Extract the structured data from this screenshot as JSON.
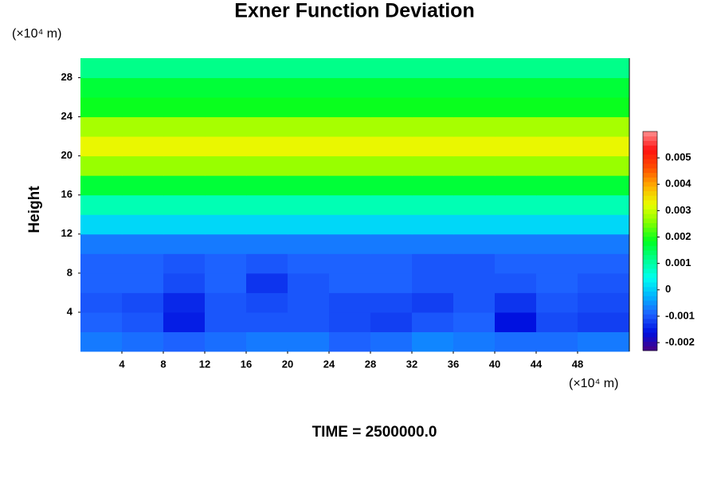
{
  "chart_data": {
    "type": "contour",
    "title": "Exner Function Deviation",
    "y_unit": "(×10⁴ m)",
    "x_unit": "(×10⁴ m)",
    "ylabel": "Height",
    "footer": "TIME = 2500000.0",
    "xlim": [
      0,
      53
    ],
    "ylim": [
      0,
      30
    ],
    "xticks": [
      4,
      8,
      12,
      16,
      20,
      24,
      28,
      32,
      36,
      40,
      44,
      48
    ],
    "yticks": [
      4,
      8,
      12,
      16,
      20,
      24,
      28
    ],
    "x": [
      2,
      6,
      10,
      14,
      18,
      22,
      26,
      30,
      34,
      38,
      42,
      46,
      50
    ],
    "y": [
      1,
      3,
      5,
      7,
      9,
      11,
      13,
      15,
      17,
      19,
      21,
      23,
      25,
      27,
      29
    ],
    "z": [
      [
        -0.0007,
        -0.0008,
        -0.0009,
        -0.0008,
        -0.0007,
        -0.0007,
        -0.0009,
        -0.0008,
        -0.0006,
        -0.0007,
        -0.0008,
        -0.0008,
        -0.0007
      ],
      [
        -0.0009,
        -0.001,
        -0.0015,
        -0.001,
        -0.001,
        -0.001,
        -0.0011,
        -0.0012,
        -0.001,
        -0.0009,
        -0.0016,
        -0.0011,
        -0.0012
      ],
      [
        -0.001,
        -0.0011,
        -0.0014,
        -0.001,
        -0.0011,
        -0.001,
        -0.0011,
        -0.0011,
        -0.0012,
        -0.001,
        -0.0013,
        -0.001,
        -0.0011
      ],
      [
        -0.0009,
        -0.0009,
        -0.0011,
        -0.0009,
        -0.0013,
        -0.001,
        -0.0009,
        -0.0009,
        -0.001,
        -0.001,
        -0.001,
        -0.0009,
        -0.001
      ],
      [
        -0.0009,
        -0.0009,
        -0.001,
        -0.0009,
        -0.001,
        -0.0009,
        -0.0009,
        -0.0009,
        -0.001,
        -0.001,
        -0.0009,
        -0.0009,
        -0.0009
      ],
      [
        -0.0007,
        -0.0007,
        -0.0007,
        -0.0007,
        -0.0007,
        -0.0007,
        -0.0007,
        -0.0007,
        -0.0007,
        -0.0007,
        -0.0007,
        -0.0007,
        -0.0007
      ],
      [
        0.0001,
        0.0001,
        0.0001,
        0.0001,
        0.0001,
        0.0001,
        0.0001,
        0.0001,
        0.0001,
        0.0001,
        0.0001,
        0.0001,
        0.0001
      ],
      [
        0.0009,
        0.0009,
        0.0009,
        0.0009,
        0.0009,
        0.0009,
        0.0009,
        0.0009,
        0.0009,
        0.0009,
        0.0009,
        0.0009,
        0.0009
      ],
      [
        0.0017,
        0.0017,
        0.0017,
        0.0017,
        0.0017,
        0.0017,
        0.0017,
        0.0017,
        0.0017,
        0.0017,
        0.0017,
        0.0017,
        0.0017
      ],
      [
        0.0027,
        0.0027,
        0.0027,
        0.0027,
        0.0027,
        0.0027,
        0.0027,
        0.0027,
        0.0027,
        0.0027,
        0.0027,
        0.0027,
        0.0027
      ],
      [
        0.0033,
        0.0033,
        0.0033,
        0.0033,
        0.0033,
        0.0033,
        0.0033,
        0.0033,
        0.0033,
        0.0033,
        0.0033,
        0.0033,
        0.0033
      ],
      [
        0.0028,
        0.0028,
        0.0028,
        0.0028,
        0.0028,
        0.0028,
        0.0028,
        0.0028,
        0.0028,
        0.0028,
        0.0028,
        0.0028,
        0.0028
      ],
      [
        0.0019,
        0.0019,
        0.0019,
        0.0019,
        0.0019,
        0.0019,
        0.0019,
        0.0019,
        0.0019,
        0.0019,
        0.0019,
        0.0019,
        0.0019
      ],
      [
        0.0017,
        0.0017,
        0.0017,
        0.0017,
        0.0017,
        0.0017,
        0.0017,
        0.0017,
        0.0017,
        0.0017,
        0.0017,
        0.0017,
        0.0017
      ],
      [
        0.0012,
        0.0012,
        0.0012,
        0.0012,
        0.0012,
        0.0012,
        0.0012,
        0.0012,
        0.0012,
        0.0012,
        0.0012,
        0.0012,
        0.0012
      ]
    ],
    "zlim": [
      -0.0023,
      0.006
    ],
    "zticks": [
      -0.002,
      -0.001,
      0,
      0.001,
      0.002,
      0.003,
      0.004,
      0.005
    ],
    "colormap": [
      "#4b0082",
      "#0010e0",
      "#1e60ff",
      "#00b4ff",
      "#00fff0",
      "#00ff90",
      "#00ff20",
      "#80ff00",
      "#e8ff00",
      "#ffb000",
      "#ff5000",
      "#ff1010",
      "#ff9090"
    ]
  }
}
